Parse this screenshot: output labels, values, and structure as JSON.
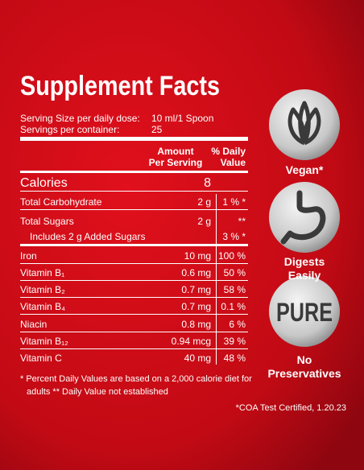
{
  "title": "Supplement Facts",
  "serving": [
    {
      "label": "Serving Size per daily dose:",
      "value": "10 ml/1 Spoon"
    },
    {
      "label": "Servings per container:",
      "value": "25"
    }
  ],
  "header": {
    "amount": [
      "Amount",
      "Per Serving"
    ],
    "dv": [
      "% Daily",
      "Value"
    ]
  },
  "rows": [
    [
      "Calories",
      "8",
      ""
    ],
    [
      "Total Carbohydrate",
      "2 g",
      "1 % *"
    ],
    [
      "Total Sugars",
      "2 g",
      "**"
    ],
    [
      "Includes 2 g Added Sugars",
      "",
      "3 % *"
    ],
    [
      "Iron",
      "10 mg",
      "100 %"
    ],
    [
      "Vitamin B₁",
      "0.6 mg",
      "50 %"
    ],
    [
      "Vitamin B₂",
      "0.7 mg",
      "58 %"
    ],
    [
      "Vitamin B₄",
      "0.7 mg",
      "0.1 %"
    ],
    [
      "Niacin",
      "0.8 mg",
      "6 %"
    ],
    [
      "Vitamin B₁₂",
      "0.94 mcg",
      "39 %"
    ],
    [
      "Vitamin C",
      "40 mg",
      "48 %"
    ]
  ],
  "footnote": [
    "* Percent Daily Values are based on a 2,000 calorie diet for",
    "adults  ** Daily Value not established"
  ],
  "certification": "*COA Test Certified, 1.20.23",
  "badges": [
    {
      "label": [
        "Vegan*"
      ]
    },
    {
      "label": [
        "Digests",
        "Easily"
      ]
    },
    {
      "label": [
        "No",
        "Preservatives"
      ],
      "icon_text": "PURE"
    }
  ]
}
